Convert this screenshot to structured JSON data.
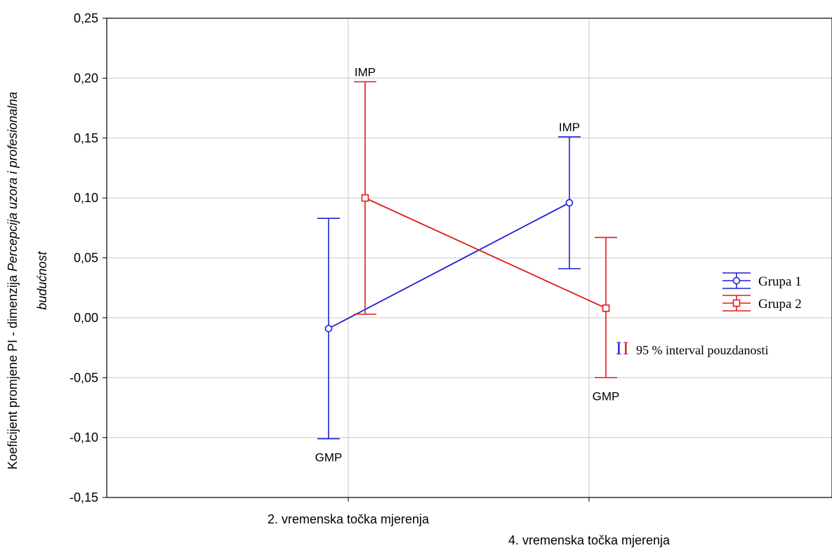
{
  "chart_data": {
    "type": "line",
    "ylabel_prefix": "Koeficijent promjene PI - dimenzija ",
    "ylabel_italic": "Percepcija uzora i profesionalna",
    "ylabel_line2": "budućnost",
    "categories": [
      "2. vremenska točka mjerenja",
      "4. vremenska točka mjerenja"
    ],
    "ylim": [
      -0.15,
      0.25
    ],
    "yticks": [
      0.25,
      0.2,
      0.15,
      0.1,
      0.05,
      0.0,
      -0.05,
      -0.1,
      -0.15
    ],
    "ytick_labels": [
      "0,25",
      "0,20",
      "0,15",
      "0,10",
      "0,05",
      "0,00",
      "-0,05",
      "-0,10",
      "-0,15"
    ],
    "grid": true,
    "legend_position": "right",
    "series": [
      {
        "name": "Grupa 1",
        "color": "#1f1fd6",
        "marker": "circle",
        "values": [
          -0.009,
          0.096
        ],
        "ci_lower": [
          -0.101,
          0.041
        ],
        "ci_upper": [
          0.083,
          0.151
        ]
      },
      {
        "name": "Grupa 2",
        "color": "#e01b1b",
        "marker": "square",
        "values": [
          0.1,
          0.008
        ],
        "ci_lower": [
          0.003,
          -0.05
        ],
        "ci_upper": [
          0.197,
          0.067
        ]
      }
    ],
    "annotations": [
      {
        "text": "IMP",
        "series": 1,
        "point": 0,
        "anchor": "top"
      },
      {
        "text": "IMP",
        "series": 0,
        "point": 1,
        "anchor": "top"
      },
      {
        "text": "GMP",
        "series": 0,
        "point": 0,
        "anchor": "bottom"
      },
      {
        "text": "GMP",
        "series": 1,
        "point": 1,
        "anchor": "bottom"
      }
    ],
    "ci_legend": {
      "mark_first": "I",
      "mark_second": "I",
      "text": "95 % interval pouzdanosti"
    }
  }
}
